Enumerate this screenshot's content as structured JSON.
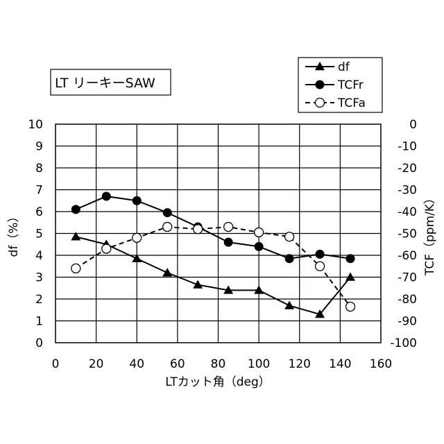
{
  "chart_data": {
    "type": "line",
    "annotation": "LT リーキーSAW",
    "xlabel": "LTカット角（deg）",
    "ylabel_left": "df（%）",
    "ylabel_right": "TCF（ppm/K）",
    "xlim": [
      0,
      160
    ],
    "ylim_left": [
      0,
      10
    ],
    "ylim_right": [
      -100,
      0
    ],
    "x_ticks": [
      "0",
      "20",
      "40",
      "60",
      "80",
      "100",
      "120",
      "140",
      "160"
    ],
    "y_left_ticks": [
      "0",
      "1",
      "2",
      "3",
      "4",
      "5",
      "6",
      "7",
      "8",
      "9",
      "10"
    ],
    "y_right_ticks": [
      "-100",
      "-90",
      "-80",
      "-70",
      "-60",
      "-50",
      "-40",
      "-30",
      "-20",
      "-10",
      "0"
    ],
    "grid": true,
    "legend_position": "top-right",
    "series": [
      {
        "name": "df",
        "axis": "left",
        "marker": "filled-triangle",
        "line": "solid",
        "color": "#000000",
        "x": [
          10,
          25,
          40,
          55,
          70,
          85,
          100,
          115,
          130,
          145
        ],
        "values": [
          4.85,
          4.5,
          3.85,
          3.2,
          2.65,
          2.4,
          2.4,
          1.7,
          1.3,
          3.0
        ]
      },
      {
        "name": "TCFr",
        "axis": "right",
        "marker": "filled-circle",
        "line": "solid",
        "color": "#000000",
        "x": [
          10,
          25,
          40,
          55,
          70,
          85,
          100,
          115,
          130,
          145
        ],
        "values": [
          -39,
          -33,
          -35,
          -40.5,
          -47,
          -54,
          -56,
          -61.5,
          -59.5,
          -61.5
        ]
      },
      {
        "name": "TCFa",
        "axis": "right",
        "marker": "open-circle",
        "line": "dashed",
        "color": "#000000",
        "x": [
          10,
          25,
          40,
          55,
          70,
          85,
          100,
          115,
          130,
          145
        ],
        "values": [
          -66,
          -57,
          -52,
          -47,
          -48,
          -47,
          -49.5,
          -51.5,
          -65,
          -83.5
        ]
      }
    ]
  }
}
